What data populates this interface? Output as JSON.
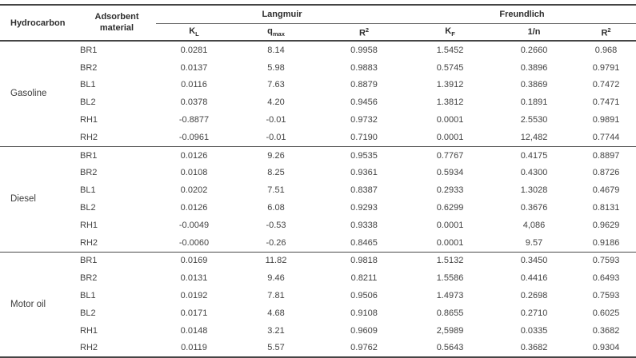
{
  "table": {
    "header": {
      "hydrocarbon": "Hydrocarbon",
      "adsorbent": "Adsorbent material",
      "groups": [
        {
          "label": "Langmuir"
        },
        {
          "label": "Freundlich"
        }
      ],
      "subcolumns": [
        {
          "base": "K",
          "sub": "L"
        },
        {
          "base": "q",
          "sub": "max"
        },
        {
          "base": "R",
          "sup": "2"
        },
        {
          "base": "K",
          "sub": "F"
        },
        {
          "base": "1/n"
        },
        {
          "base": "R",
          "sup": "2"
        }
      ]
    },
    "body": [
      {
        "hydrocarbon": "Gasoline",
        "rows": [
          {
            "material": "BR1",
            "v": [
              "0.0281",
              "8.14",
              "0.9958",
              "1.5452",
              "0.2660",
              "0.968"
            ]
          },
          {
            "material": "BR2",
            "v": [
              "0.0137",
              "5.98",
              "0.9883",
              "0.5745",
              "0.3896",
              "0.9791"
            ]
          },
          {
            "material": "BL1",
            "v": [
              "0.0116",
              "7.63",
              "0.8879",
              "1.3912",
              "0.3869",
              "0.7472"
            ]
          },
          {
            "material": "BL2",
            "v": [
              "0.0378",
              "4.20",
              "0.9456",
              "1.3812",
              "0.1891",
              "0.7471"
            ]
          },
          {
            "material": "RH1",
            "v": [
              "-0.8877",
              "-0.01",
              "0.9732",
              "0.0001",
              "2.5530",
              "0.9891"
            ]
          },
          {
            "material": "RH2",
            "v": [
              "-0.0961",
              "-0.01",
              "0.7190",
              "0.0001",
              "12,482",
              "0.7744"
            ]
          }
        ]
      },
      {
        "hydrocarbon": "Diesel",
        "rows": [
          {
            "material": "BR1",
            "v": [
              "0.0126",
              "9.26",
              "0.9535",
              "0.7767",
              "0.4175",
              "0.8897"
            ]
          },
          {
            "material": "BR2",
            "v": [
              "0.0108",
              "8.25",
              "0.9361",
              "0.5934",
              "0.4300",
              "0.8726"
            ]
          },
          {
            "material": "BL1",
            "v": [
              "0.0202",
              "7.51",
              "0.8387",
              "0.2933",
              "1.3028",
              "0.4679"
            ]
          },
          {
            "material": "BL2",
            "v": [
              "0.0126",
              "6.08",
              "0.9293",
              "0.6299",
              "0.3676",
              "0.8131"
            ]
          },
          {
            "material": "RH1",
            "v": [
              "-0.0049",
              "-0.53",
              "0.9338",
              "0.0001",
              "4,086",
              "0.9629"
            ]
          },
          {
            "material": "RH2",
            "v": [
              "-0.0060",
              "-0.26",
              "0.8465",
              "0.0001",
              "9.57",
              "0.9186"
            ]
          }
        ]
      },
      {
        "hydrocarbon": "Motor oil",
        "rows": [
          {
            "material": "BR1",
            "v": [
              "0.0169",
              "11.82",
              "0.9818",
              "1.5132",
              "0.3450",
              "0.7593"
            ]
          },
          {
            "material": "BR2",
            "v": [
              "0.0131",
              "9.46",
              "0.8211",
              "1.5586",
              "0.4416",
              "0.6493"
            ]
          },
          {
            "material": "BL1",
            "v": [
              "0.0192",
              "7.81",
              "0.9506",
              "1.4973",
              "0.2698",
              "0.7593"
            ]
          },
          {
            "material": "BL2",
            "v": [
              "0.0171",
              "4.68",
              "0.9108",
              "0.8655",
              "0.2710",
              "0.6025"
            ]
          },
          {
            "material": "RH1",
            "v": [
              "0.0148",
              "3.21",
              "0.9609",
              "2,5989",
              "0.0335",
              "0.3682"
            ]
          },
          {
            "material": "RH2",
            "v": [
              "0.0119",
              "5.57",
              "0.9762",
              "0.5643",
              "0.3682",
              "0.9304"
            ]
          }
        ]
      }
    ],
    "colors": {
      "rule_dark": "#454545",
      "rule_light": "#6a6a6a",
      "text": "#424242",
      "header_text": "#2d2d2d",
      "background": "#ffffff"
    }
  }
}
